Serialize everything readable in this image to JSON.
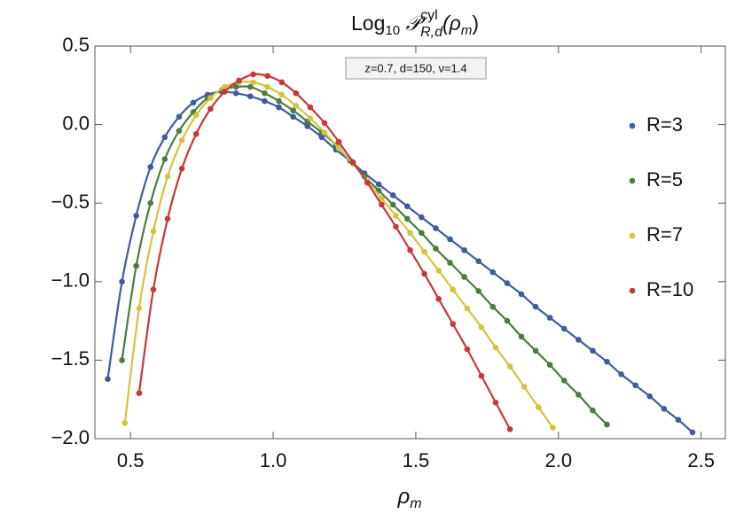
{
  "chart_data": {
    "type": "scatter",
    "title": [
      "Log",
      "10",
      " 𝒫",
      "cyl",
      "R,d",
      "(ρ",
      "m",
      ")"
    ],
    "x_label": [
      "ρ",
      "m"
    ],
    "annotation": "z=0.7, d=150, ν=1.4",
    "xlim": [
      0.375,
      2.585
    ],
    "ylim": [
      -2.0,
      0.5
    ],
    "xticks": [
      0.5,
      {
        "value": 1.0,
        "label": "1.0"
      },
      1.5,
      {
        "value": 2.0,
        "label": "2.0"
      },
      2.5
    ],
    "yticks": [
      0.5,
      {
        "value": 0.0,
        "label": "0.0"
      },
      {
        "value": -0.5,
        "label": "−0.5"
      },
      {
        "value": -1.0,
        "label": "−1.0"
      },
      {
        "value": -1.5,
        "label": "−1.5"
      },
      {
        "value": -2.0,
        "label": "−2.0"
      }
    ],
    "legend": "right",
    "fit_lines": true,
    "series": [
      {
        "name": "R=3",
        "color": "#3f5ba0",
        "x": [
          0.42,
          0.47,
          0.52,
          0.57,
          0.62,
          0.67,
          0.72,
          0.77,
          0.82,
          0.87,
          0.92,
          0.97,
          1.02,
          1.07,
          1.12,
          1.17,
          1.22,
          1.27,
          1.32,
          1.37,
          1.42,
          1.47,
          1.52,
          1.57,
          1.62,
          1.67,
          1.72,
          1.77,
          1.82,
          1.87,
          1.92,
          1.97,
          2.02,
          2.07,
          2.12,
          2.17,
          2.22,
          2.27,
          2.32,
          2.37,
          2.42,
          2.47
        ],
        "values": [
          -1.62,
          -1.0,
          -0.58,
          -0.27,
          -0.08,
          0.05,
          0.14,
          0.19,
          0.21,
          0.2,
          0.18,
          0.15,
          0.11,
          0.05,
          -0.01,
          -0.08,
          -0.16,
          -0.23,
          -0.31,
          -0.38,
          -0.45,
          -0.52,
          -0.59,
          -0.66,
          -0.73,
          -0.8,
          -0.87,
          -0.94,
          -1.01,
          -1.08,
          -1.16,
          -1.23,
          -1.3,
          -1.37,
          -1.44,
          -1.51,
          -1.59,
          -1.66,
          -1.73,
          -1.81,
          -1.88,
          -1.96
        ]
      },
      {
        "name": "R=5",
        "color": "#4b7d3f",
        "x": [
          0.47,
          0.52,
          0.57,
          0.62,
          0.67,
          0.72,
          0.77,
          0.82,
          0.87,
          0.92,
          0.97,
          1.02,
          1.07,
          1.12,
          1.17,
          1.22,
          1.27,
          1.32,
          1.37,
          1.42,
          1.47,
          1.52,
          1.57,
          1.62,
          1.67,
          1.72,
          1.77,
          1.82,
          1.87,
          1.92,
          1.97,
          2.02,
          2.07,
          2.12,
          2.17
        ],
        "values": [
          -1.5,
          -0.9,
          -0.5,
          -0.22,
          -0.04,
          0.08,
          0.17,
          0.22,
          0.24,
          0.24,
          0.2,
          0.15,
          0.09,
          0.02,
          -0.05,
          -0.13,
          -0.23,
          -0.33,
          -0.42,
          -0.51,
          -0.6,
          -0.69,
          -0.79,
          -0.88,
          -0.97,
          -1.06,
          -1.16,
          -1.25,
          -1.35,
          -1.44,
          -1.53,
          -1.63,
          -1.72,
          -1.82,
          -1.91
        ]
      },
      {
        "name": "R=7",
        "color": "#d3c340",
        "x": [
          0.48,
          0.53,
          0.58,
          0.63,
          0.68,
          0.73,
          0.78,
          0.83,
          0.88,
          0.93,
          0.98,
          1.03,
          1.08,
          1.13,
          1.18,
          1.23,
          1.28,
          1.33,
          1.38,
          1.43,
          1.48,
          1.53,
          1.58,
          1.63,
          1.68,
          1.73,
          1.78,
          1.83,
          1.88,
          1.93,
          1.98
        ],
        "values": [
          -1.9,
          -1.17,
          -0.68,
          -0.33,
          -0.1,
          0.06,
          0.17,
          0.24,
          0.27,
          0.27,
          0.24,
          0.19,
          0.12,
          0.04,
          -0.05,
          -0.15,
          -0.25,
          -0.36,
          -0.47,
          -0.58,
          -0.69,
          -0.81,
          -0.93,
          -1.05,
          -1.17,
          -1.29,
          -1.42,
          -1.54,
          -1.67,
          -1.8,
          -1.93
        ]
      },
      {
        "name": "R=10",
        "color": "#c8373a",
        "x": [
          0.53,
          0.58,
          0.63,
          0.68,
          0.73,
          0.78,
          0.83,
          0.88,
          0.93,
          0.98,
          1.03,
          1.08,
          1.13,
          1.18,
          1.23,
          1.28,
          1.33,
          1.38,
          1.43,
          1.48,
          1.53,
          1.58,
          1.63,
          1.68,
          1.73,
          1.78,
          1.83
        ],
        "values": [
          -1.71,
          -1.05,
          -0.6,
          -0.28,
          -0.06,
          0.1,
          0.21,
          0.28,
          0.32,
          0.31,
          0.27,
          0.2,
          0.11,
          0.01,
          -0.11,
          -0.24,
          -0.37,
          -0.51,
          -0.65,
          -0.8,
          -0.95,
          -1.11,
          -1.27,
          -1.43,
          -1.6,
          -1.77,
          -1.94
        ]
      }
    ]
  }
}
